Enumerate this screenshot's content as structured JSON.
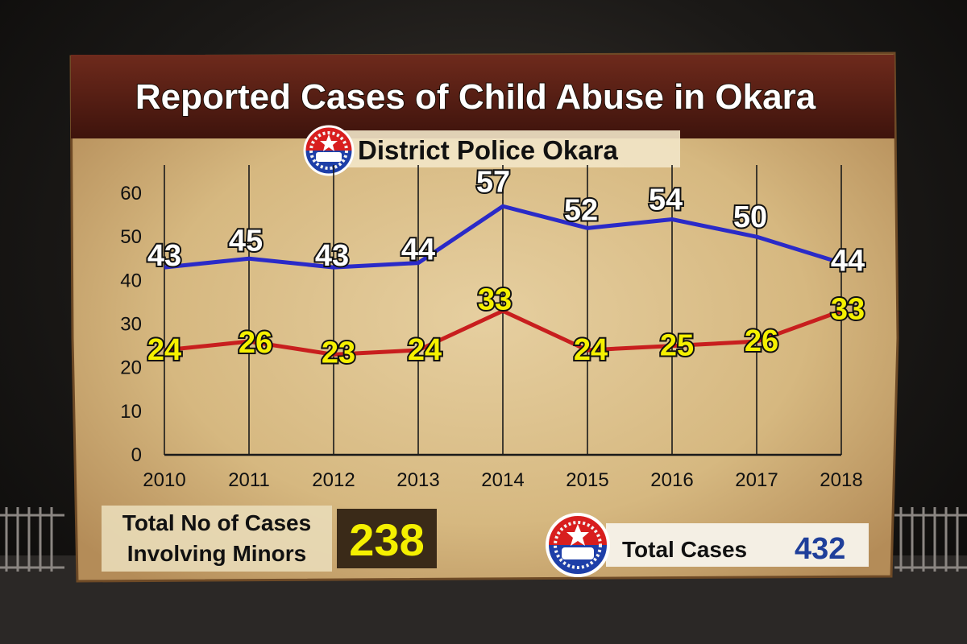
{
  "colors": {
    "total_line": "#2a2ac8",
    "minor_line": "#c81e1e",
    "total_label": "#ffffff",
    "minor_label": "#f5f000",
    "banner": "#5a1e14",
    "parchment": "#dcc190",
    "total_value": "#1f3f9a"
  },
  "chart_data": {
    "type": "line",
    "title": "Reported Cases of Child Abuse in Okara",
    "subtitle": "District Police Okara",
    "categories": [
      "2010",
      "2011",
      "2012",
      "2013",
      "2014",
      "2015",
      "2016",
      "2017",
      "2018"
    ],
    "series": [
      {
        "values": [
          43,
          45,
          43,
          44,
          57,
          52,
          54,
          50,
          44
        ],
        "color": "#2a2ac8"
      },
      {
        "values": [
          24,
          26,
          23,
          24,
          33,
          24,
          25,
          26,
          33
        ],
        "color": "#c81e1e"
      }
    ],
    "ylim": [
      0,
      60
    ],
    "yticks": [
      0,
      10,
      20,
      30,
      40,
      50,
      60
    ],
    "grid": "vertical"
  },
  "summary": {
    "minors_label_line1": "Total No of Cases",
    "minors_label_line2": "Involving Minors",
    "minors_value": "238",
    "total_label": "Total Cases",
    "total_value": "432"
  },
  "icons": {
    "logo": "police-emblem-icon"
  }
}
